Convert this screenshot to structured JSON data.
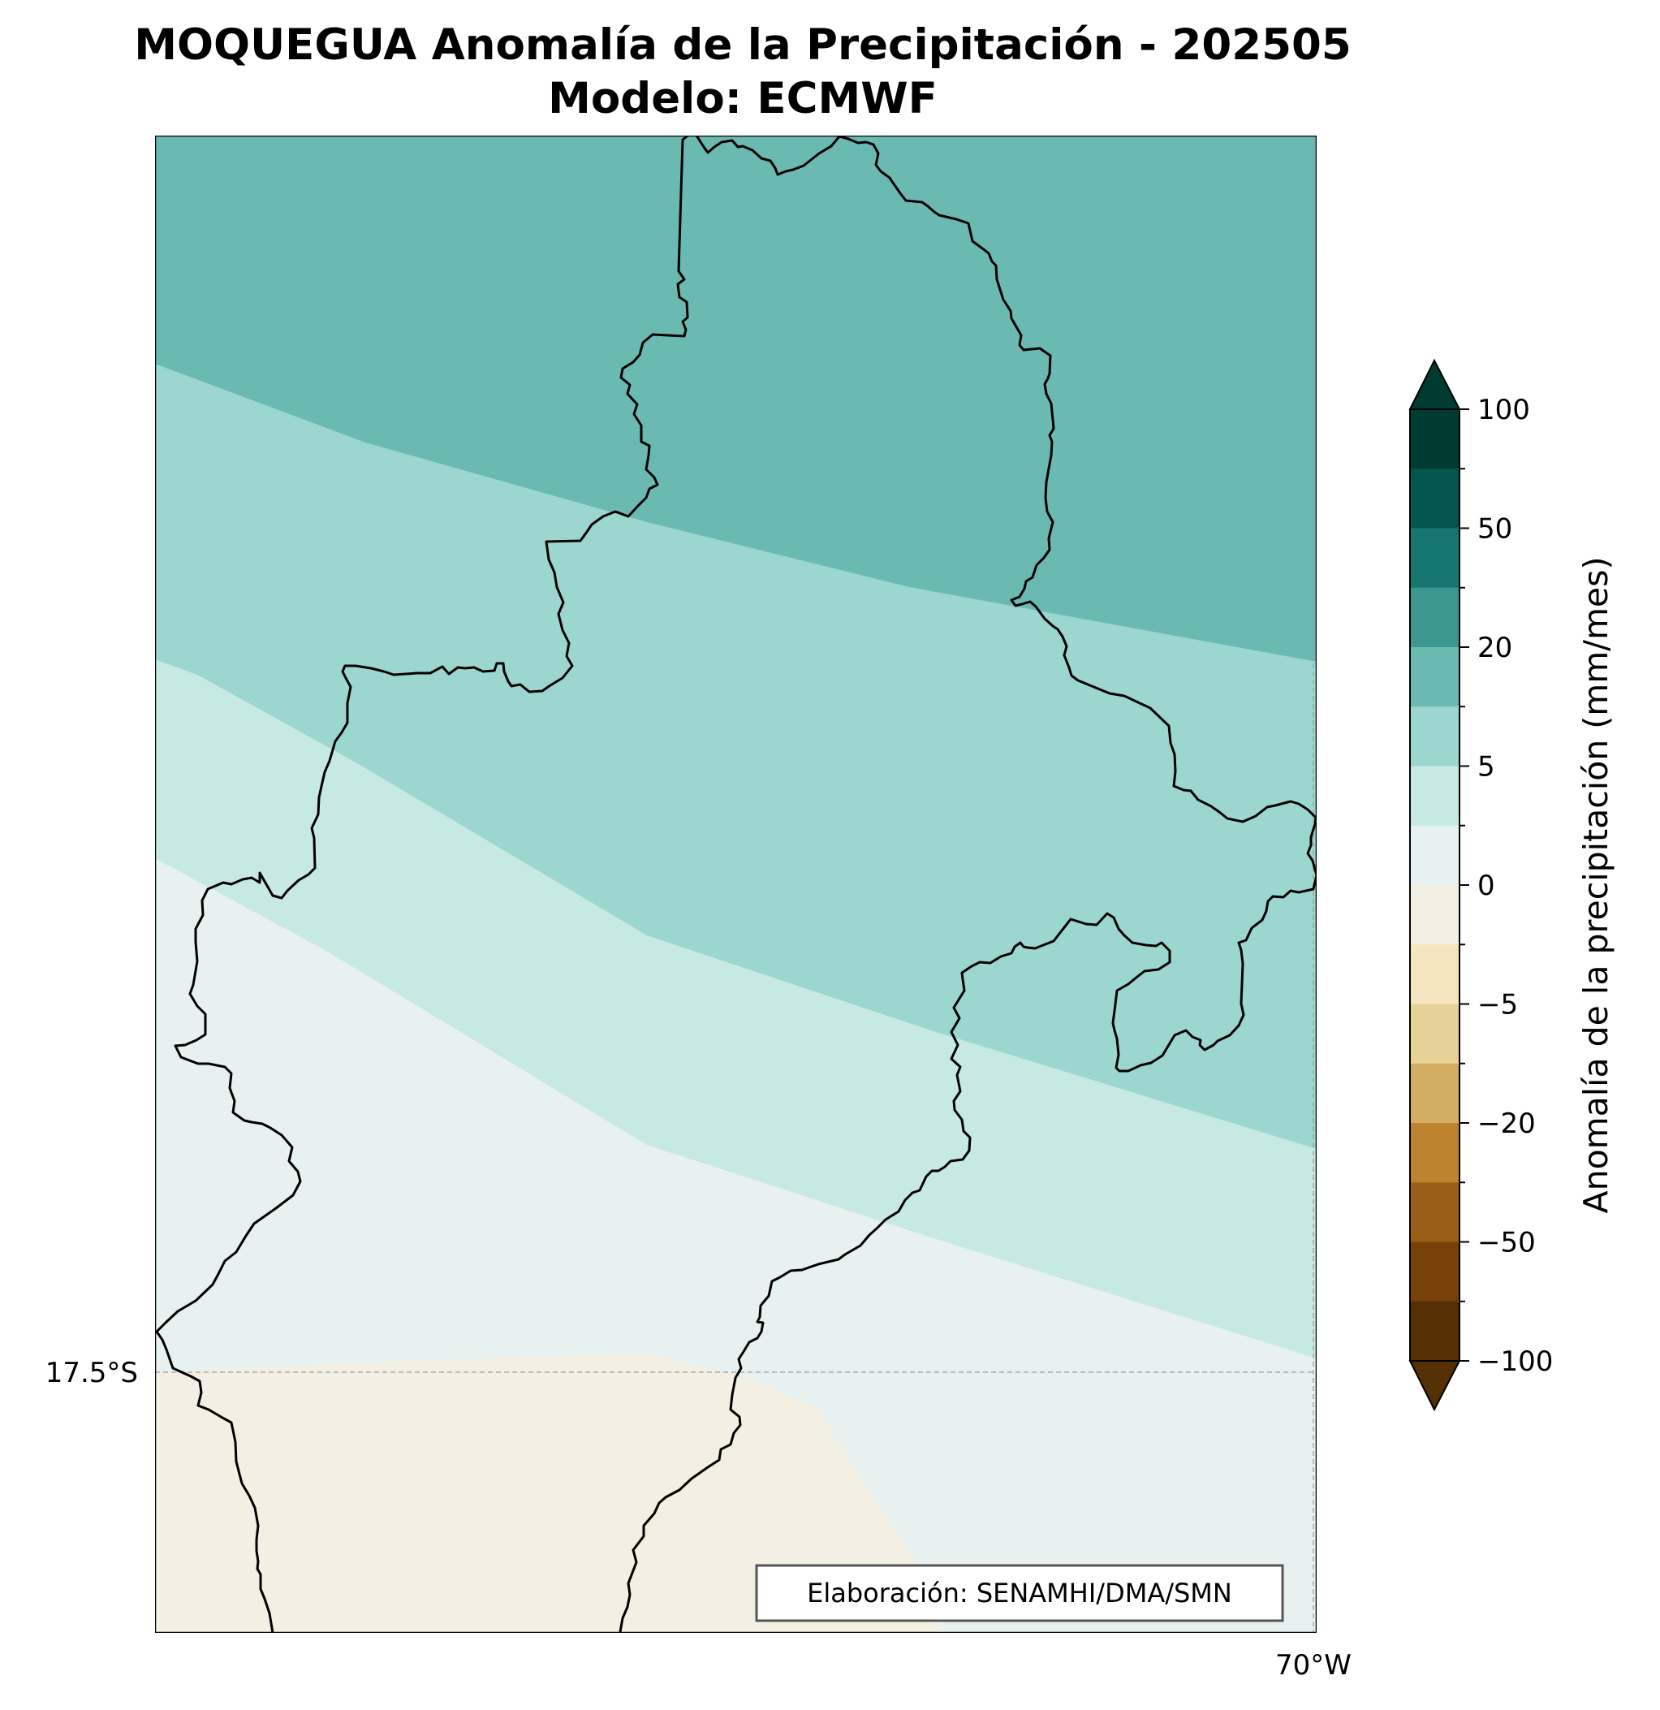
{
  "title": {
    "line1": "MOQUEGUA Anomalía de la Precipitación - 202505",
    "line2": "Modelo: ECMWF"
  },
  "map": {
    "lat_label": "17.5°S",
    "lon_label": "70°W",
    "credit": "Elaboración: SENAMHI/DMA/SMN",
    "zones": [
      {
        "name": "anomaly-zone-plus-10-20",
        "color": "#6bbab1"
      },
      {
        "name": "anomaly-zone-plus-5-10",
        "color": "#9bd7ce"
      },
      {
        "name": "anomaly-zone-plus-2-5",
        "color": "#c7e9e3"
      },
      {
        "name": "anomaly-zone-0-2",
        "color": "#e7f1ef"
      },
      {
        "name": "anomaly-zone-minus-2-0",
        "color": "#f3efe3"
      }
    ]
  },
  "colorbar": {
    "label": "Anomalía de la precipitación (mm/mes)",
    "tick_labels": [
      "100",
      "50",
      "20",
      "5",
      "0",
      "−5",
      "−20",
      "−50",
      "−100"
    ],
    "colors_top_to_bottom": [
      "#003b31",
      "#02564c",
      "#15776f",
      "#3a9891",
      "#6bbab1",
      "#9bd7ce",
      "#c7e9e3",
      "#e7f1ef",
      "#f3efe3",
      "#f5e6c0",
      "#e6d197",
      "#d3ad62",
      "#be832f",
      "#9a5f17",
      "#774108",
      "#553005"
    ],
    "extend_max_color": "#003b31",
    "extend_min_color": "#553005"
  }
}
